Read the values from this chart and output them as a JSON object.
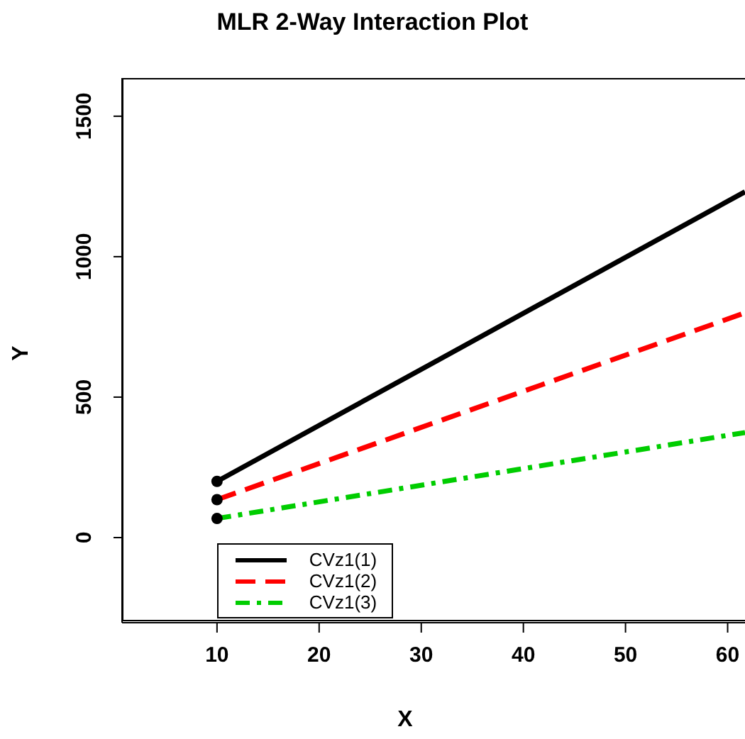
{
  "chart_data": {
    "type": "line",
    "title": "MLR 2-Way Interaction Plot",
    "xlabel": "X",
    "ylabel": "Y",
    "xlim": [
      0.7,
      61.7
    ],
    "xticks": [
      10,
      20,
      30,
      40,
      50,
      60
    ],
    "ylim": [
      -303,
      1636
    ],
    "yticks": [
      0,
      500,
      1000,
      1500
    ],
    "grid": false,
    "legend": "bottom left",
    "marker": "circle",
    "x": [
      10,
      61.7
    ],
    "series": [
      {
        "name": "CVz1(1)",
        "color": "#000000",
        "line_style": "solid",
        "values": [
          200,
          1231
        ]
      },
      {
        "name": "CVz1(2)",
        "color": "#ff0000",
        "line_style": "dashed",
        "values": [
          135,
          800
        ]
      },
      {
        "name": "CVz1(3)",
        "color": "#00cd00",
        "line_style": "dotted",
        "values": [
          68,
          374
        ]
      }
    ]
  }
}
